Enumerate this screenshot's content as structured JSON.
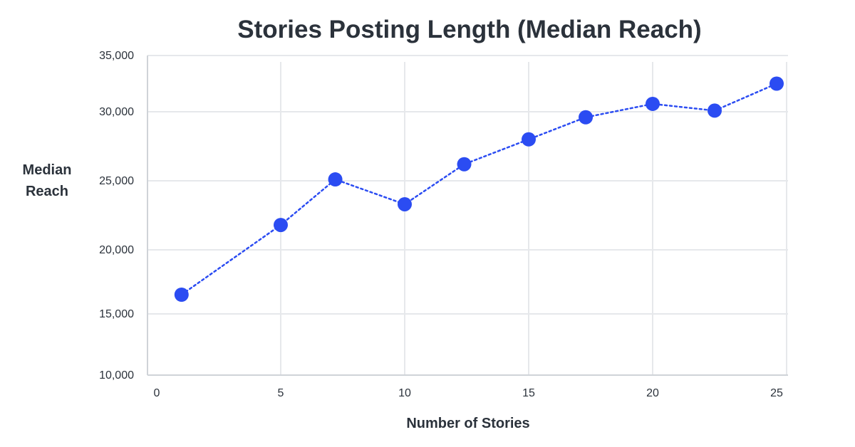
{
  "chart_data": {
    "type": "line",
    "title": "Stories Posting Length (Median Reach)",
    "xlabel": "Number of Stories",
    "ylabel_lines": [
      "Median",
      "Reach"
    ],
    "x_ticks": [
      "0",
      "5",
      "10",
      "15",
      "20",
      "25"
    ],
    "y_ticks": [
      "10,000",
      "15,000",
      "20,000",
      "25,000",
      "30,000",
      "35,000"
    ],
    "xlim": [
      0,
      25
    ],
    "grid": true,
    "series": [
      {
        "color": "#2b4cf2",
        "line_style": "dotted",
        "marker": "circle",
        "points": [
          {
            "x": 1,
            "y": 16500
          },
          {
            "x": 5,
            "y": 21800
          },
          {
            "x": 7.2,
            "y": 25100
          },
          {
            "x": 10,
            "y": 23300
          },
          {
            "x": 12.4,
            "y": 26200
          },
          {
            "x": 15,
            "y": 28000
          },
          {
            "x": 17.3,
            "y": 29600
          },
          {
            "x": 20,
            "y": 30700
          },
          {
            "x": 22.5,
            "y": 30100
          },
          {
            "x": 25,
            "y": 32500
          }
        ]
      }
    ]
  }
}
